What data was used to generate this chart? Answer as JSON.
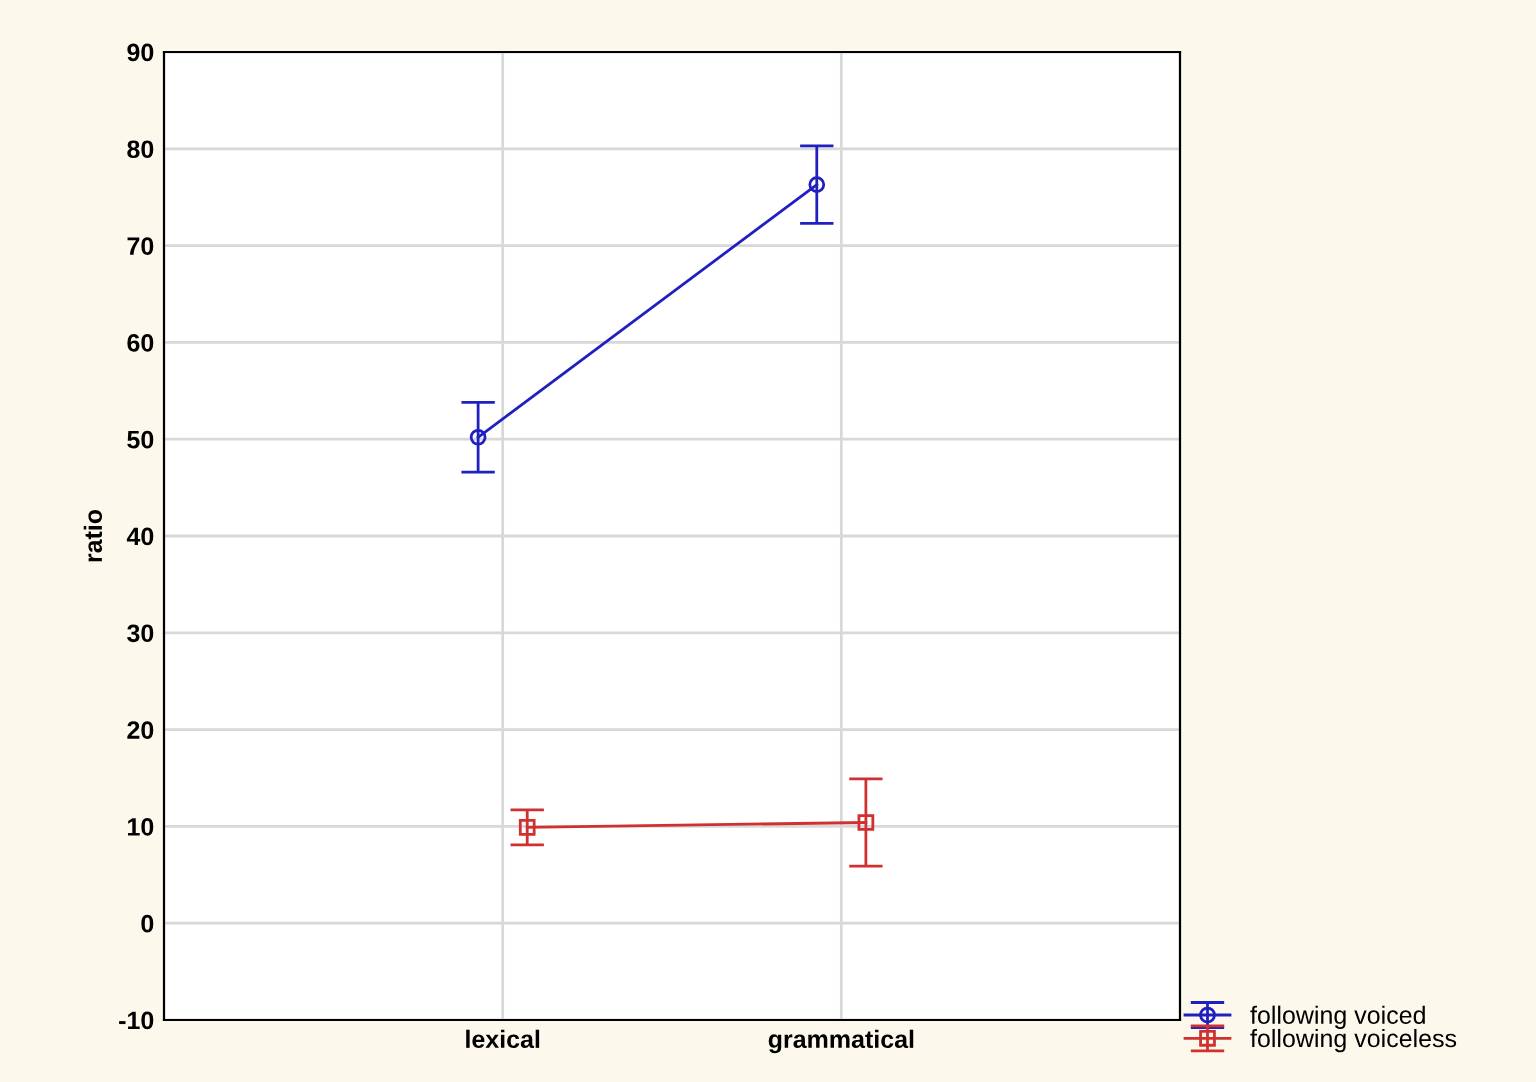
{
  "chart_data": {
    "type": "line",
    "ylabel": "ratio",
    "categories": [
      "lexical",
      "grammatical"
    ],
    "series": [
      {
        "name": "following voiced",
        "color": "#2020c0",
        "values": [
          50.2,
          76.3
        ],
        "errors": [
          3.6,
          4.0
        ],
        "marker": "circle"
      },
      {
        "name": "following voiceless",
        "color": "#d03030",
        "values": [
          9.9,
          10.4
        ],
        "errors": [
          1.8,
          4.5
        ],
        "marker": "square"
      }
    ],
    "ylim": [
      -10,
      90
    ],
    "yticks": [
      -10,
      0,
      10,
      20,
      30,
      40,
      50,
      60,
      70,
      80,
      90
    ],
    "grid": true,
    "legend": "bottom right",
    "line_style": "solid"
  }
}
